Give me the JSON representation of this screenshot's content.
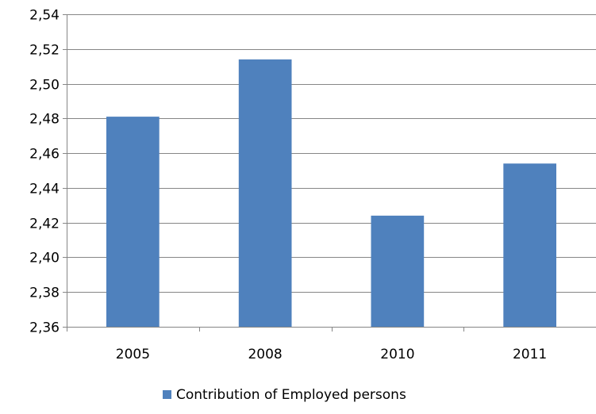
{
  "chart_data": {
    "type": "bar",
    "title": "",
    "xlabel": "",
    "ylabel": "",
    "categories": [
      "2005",
      "2008",
      "2010",
      "2011"
    ],
    "series": [
      {
        "name": "Contribution of Employed persons",
        "values": [
          2.481,
          2.514,
          2.424,
          2.454
        ],
        "color": "#4f81bd"
      }
    ],
    "ylim": [
      2.36,
      2.54
    ],
    "y_ticks": [
      "2,36",
      "2,38",
      "2,40",
      "2,42",
      "2,44",
      "2,46",
      "2,48",
      "2,50",
      "2,52",
      "2,54"
    ],
    "grid": true,
    "gridline_color": "#868686",
    "legend_position": "bottom"
  }
}
